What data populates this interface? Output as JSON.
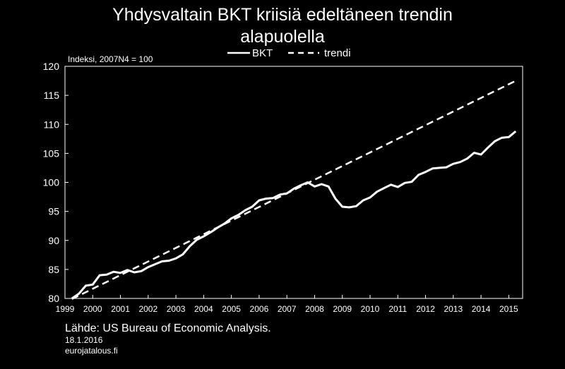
{
  "title_lines": [
    "Yhdysvaltain BKT kriisiä edeltäneen trendin",
    "alapuolella"
  ],
  "source": {
    "line1": "Lähde: US Bureau of Economic Analysis.",
    "line2": "18.1.2016",
    "line3": "eurojatalous.fi"
  },
  "colors": {
    "background": "#000000",
    "foreground": "#ffffff"
  },
  "chart_data": {
    "type": "line",
    "title": "Yhdysvaltain BKT kriisiä edeltäneen trendin alapuolella",
    "ylabel": "Indeksi, 2007N4 = 100",
    "ylim": [
      80,
      120
    ],
    "xlim": [
      1999,
      2015.5
    ],
    "yticks": [
      80,
      85,
      90,
      95,
      100,
      105,
      110,
      115,
      120
    ],
    "xticks": [
      1999,
      2000,
      2001,
      2002,
      2003,
      2004,
      2005,
      2006,
      2007,
      2008,
      2009,
      2010,
      2011,
      2012,
      2013,
      2014,
      2015
    ],
    "grid": false,
    "legend": "top-center",
    "series": [
      {
        "name": "BKT",
        "style": "solid",
        "x": [
          1999.25,
          1999.5,
          1999.75,
          2000.0,
          2000.25,
          2000.5,
          2000.75,
          2001.0,
          2001.25,
          2001.5,
          2001.75,
          2002.0,
          2002.25,
          2002.5,
          2002.75,
          2003.0,
          2003.25,
          2003.5,
          2003.75,
          2004.0,
          2004.25,
          2004.5,
          2004.75,
          2005.0,
          2005.25,
          2005.5,
          2005.75,
          2006.0,
          2006.25,
          2006.5,
          2006.75,
          2007.0,
          2007.25,
          2007.5,
          2007.75,
          2008.0,
          2008.25,
          2008.5,
          2008.75,
          2009.0,
          2009.25,
          2009.5,
          2009.75,
          2010.0,
          2010.25,
          2010.5,
          2010.75,
          2011.0,
          2011.25,
          2011.5,
          2011.75,
          2012.0,
          2012.25,
          2012.5,
          2012.75,
          2013.0,
          2013.25,
          2013.5,
          2013.75,
          2014.0,
          2014.25,
          2014.5,
          2014.75,
          2015.0,
          2015.25
        ],
        "values": [
          80.0,
          80.8,
          82.2,
          82.4,
          84.0,
          84.1,
          84.6,
          84.4,
          84.9,
          84.5,
          84.7,
          85.4,
          85.9,
          86.4,
          86.5,
          86.9,
          87.6,
          89.0,
          90.1,
          90.7,
          91.4,
          92.2,
          92.9,
          93.8,
          94.4,
          95.2,
          95.8,
          96.9,
          97.2,
          97.3,
          97.9,
          98.1,
          98.9,
          99.5,
          100.0,
          99.3,
          99.7,
          99.3,
          97.2,
          95.8,
          95.7,
          95.9,
          96.9,
          97.4,
          98.4,
          99.0,
          99.6,
          99.2,
          99.9,
          100.1,
          101.3,
          101.8,
          102.4,
          102.5,
          102.6,
          103.2,
          103.5,
          104.1,
          105.1,
          104.8,
          106.0,
          107.1,
          107.7,
          107.8,
          108.8
        ]
      },
      {
        "name": "trendi",
        "style": "dashed",
        "x": [
          1999.25,
          2015.25
        ],
        "values": [
          79.9,
          117.5
        ]
      }
    ]
  }
}
